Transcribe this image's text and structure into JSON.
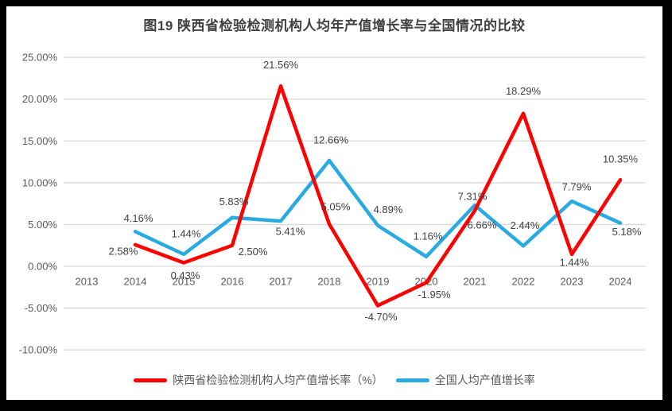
{
  "frame": {
    "background_color": "#000000",
    "card_color": "#FFFFFF"
  },
  "chart_data": {
    "type": "line",
    "title": "图19 陕西省检验检测机构人均年产值增长率与全国情况的比较",
    "categories": [
      "2013",
      "2014",
      "2015",
      "2016",
      "2017",
      "2018",
      "2019",
      "2020",
      "2021",
      "2022",
      "2023",
      "2024"
    ],
    "xlabel": "",
    "ylabel": "",
    "ylim": [
      -10,
      25
    ],
    "ytick_step": 5,
    "ytick_labels": [
      "25.00%",
      "20.00%",
      "15.00%",
      "10.00%",
      "5.00%",
      "0.00%",
      "-5.00%",
      "-10.00%"
    ],
    "grid": true,
    "legend_position": "bottom",
    "axis_color": "#595959",
    "gridline_color": "#D9D9D9",
    "label_color": "#404040",
    "title_color": "#404040",
    "series": [
      {
        "name": "陕西省检验检测机构人均产值增长率（%）",
        "color": "#FF0000",
        "start_index": 1,
        "values": [
          2.58,
          0.43,
          2.5,
          21.56,
          5.05,
          -4.7,
          -1.95,
          6.66,
          18.29,
          1.44,
          10.35
        ],
        "point_labels": [
          "2.58%",
          "0.43%",
          "2.50%",
          "21.56%",
          "5.05%",
          "-4.70%",
          "-1.95%",
          "6.66%",
          "18.29%",
          "1.44%",
          "10.35%"
        ],
        "label_offsets": [
          [
            -15,
            8
          ],
          [
            2,
            16
          ],
          [
            26,
            8
          ],
          [
            0,
            -27
          ],
          [
            8,
            -22
          ],
          [
            4,
            14
          ],
          [
            10,
            15
          ],
          [
            9,
            18
          ],
          [
            0,
            -28
          ],
          [
            3,
            10
          ],
          [
            0,
            -26
          ]
        ]
      },
      {
        "name": "全国人均产值增长率",
        "color": "#29ABE2",
        "start_index": 1,
        "values": [
          4.16,
          1.44,
          5.83,
          5.41,
          12.66,
          4.89,
          1.16,
          7.31,
          2.44,
          7.79,
          5.18
        ],
        "point_labels": [
          "4.16%",
          "1.44%",
          "5.83%",
          "5.41%",
          "12.66%",
          "4.89%",
          "1.16%",
          "7.31%",
          "2.44%",
          "7.79%",
          "5.18%"
        ],
        "label_offsets": [
          [
            4,
            -17
          ],
          [
            3,
            -26
          ],
          [
            2,
            -20
          ],
          [
            12,
            13
          ],
          [
            2,
            -26
          ],
          [
            13,
            -20
          ],
          [
            2,
            -26
          ],
          [
            -3,
            -11
          ],
          [
            2,
            -26
          ],
          [
            6,
            -18
          ],
          [
            8,
            11
          ]
        ]
      }
    ]
  }
}
